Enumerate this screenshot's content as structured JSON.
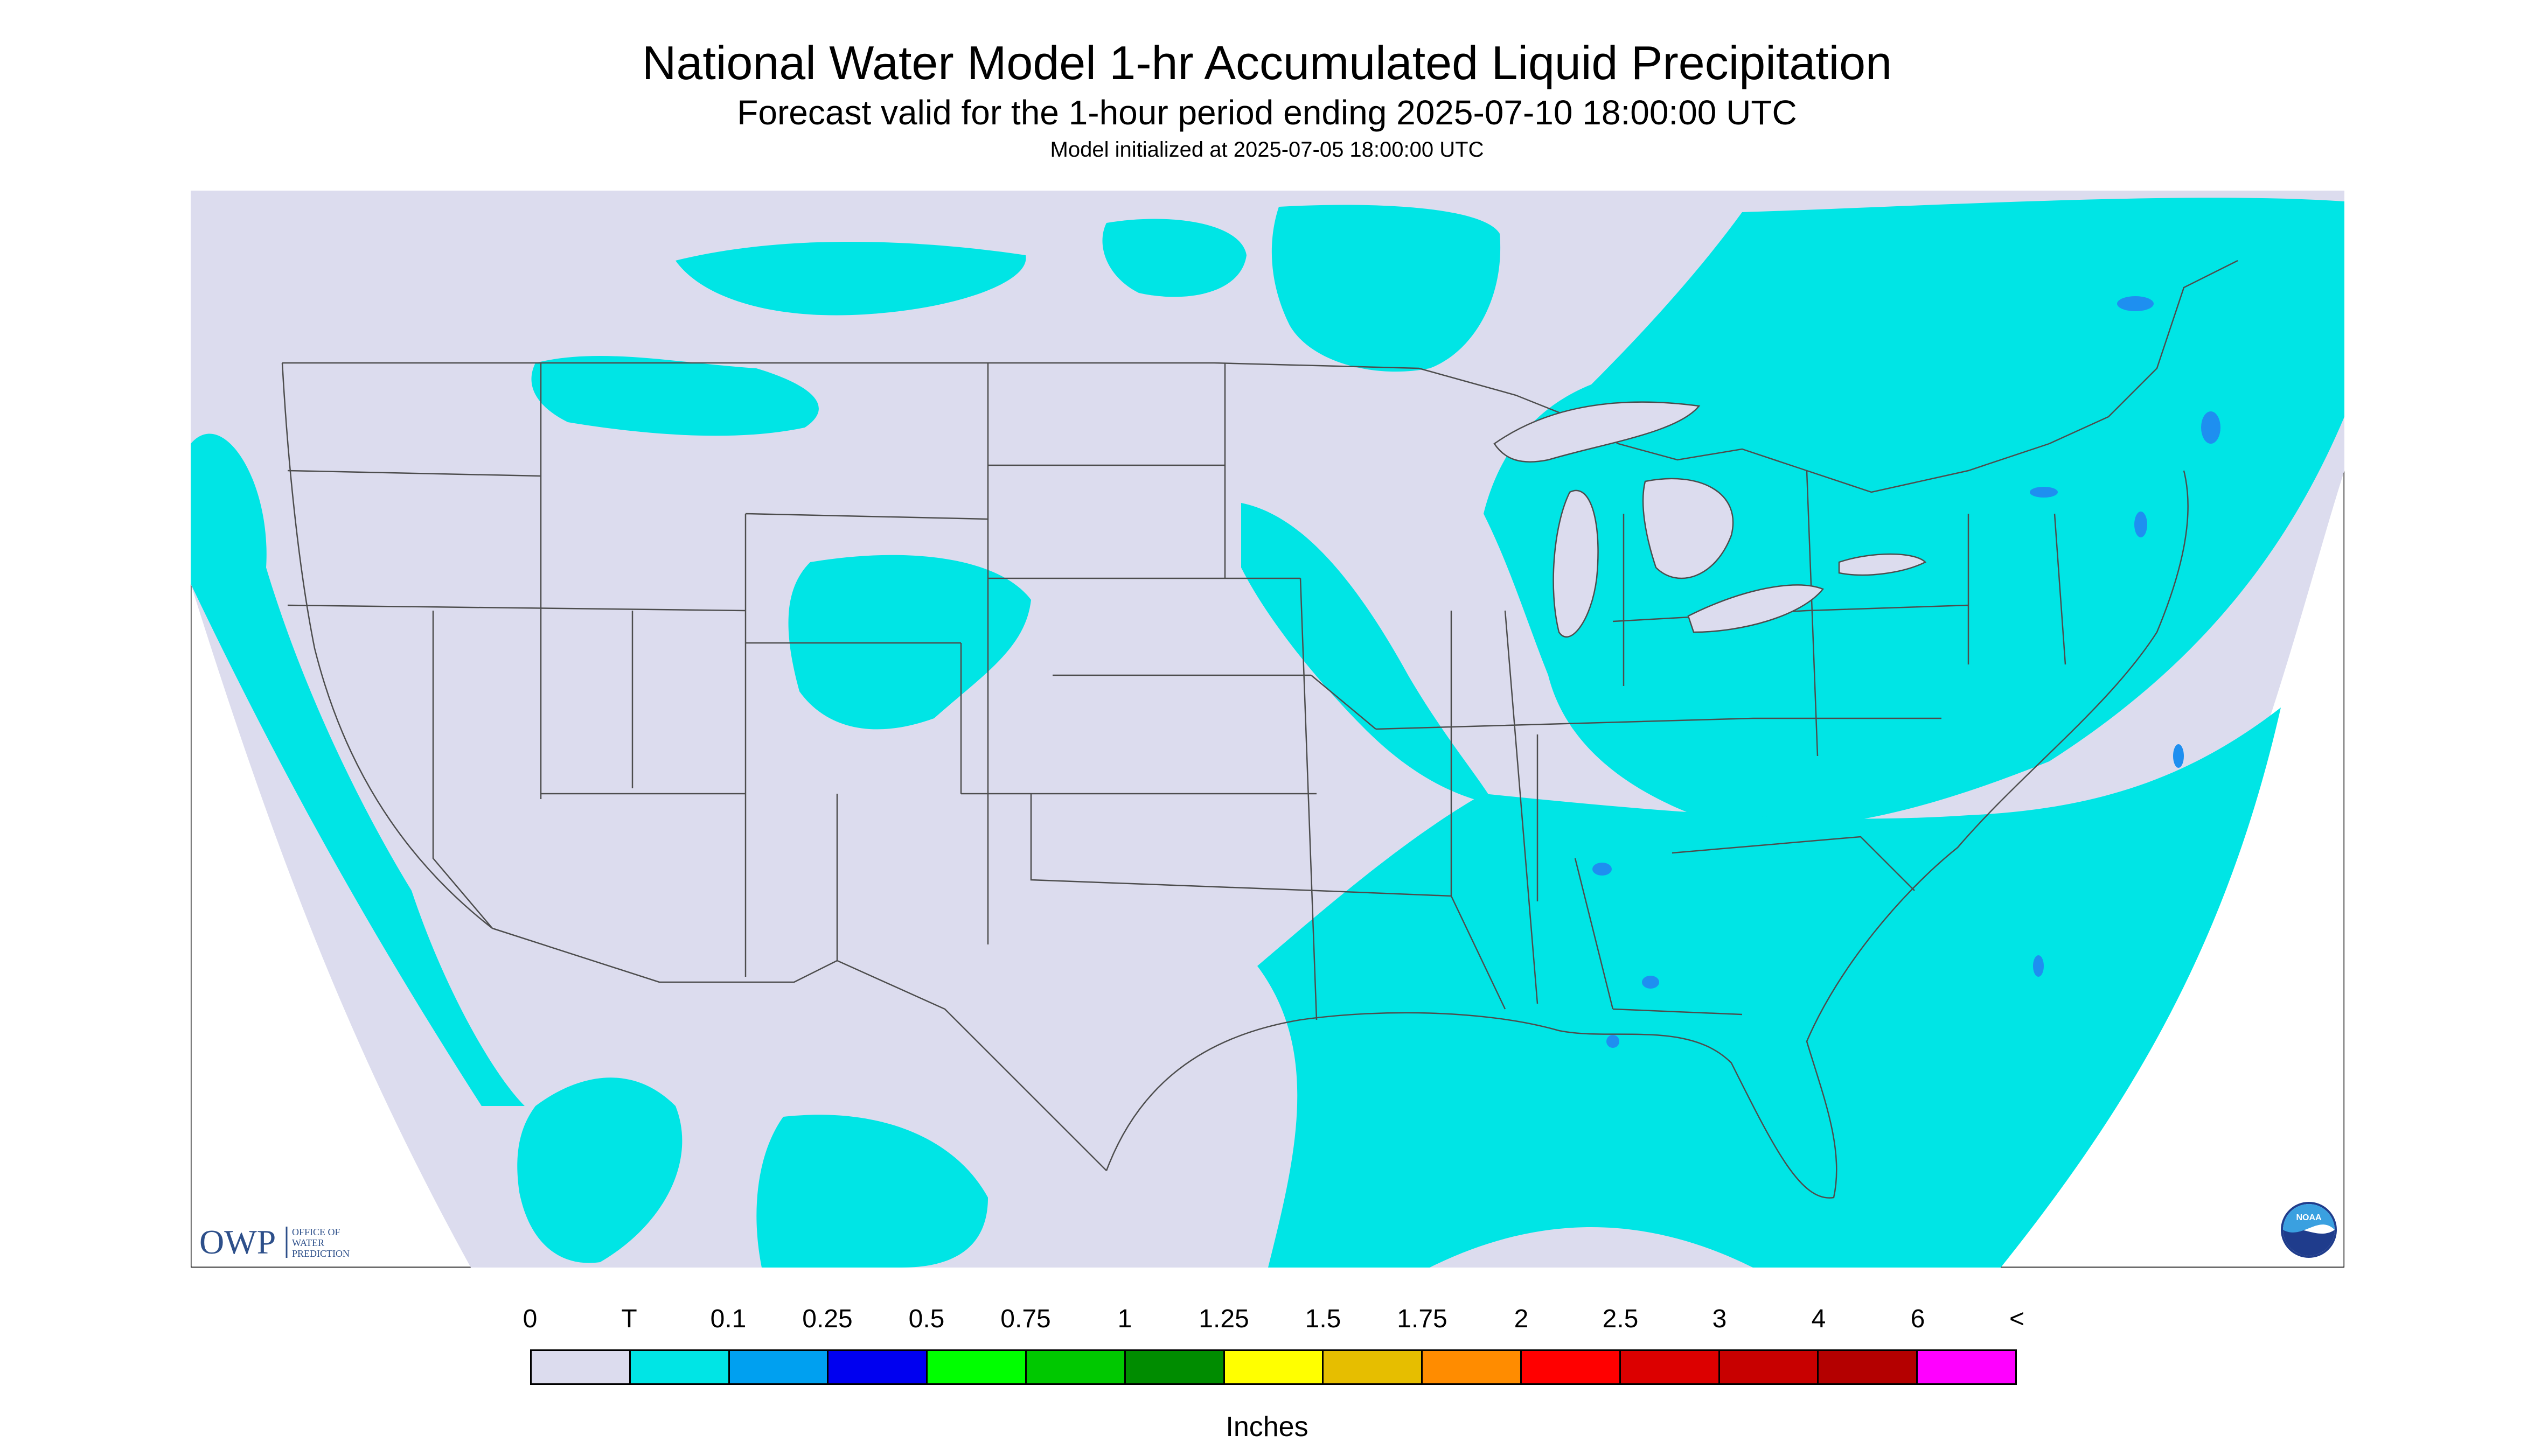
{
  "title": "National Water Model 1-hr Accumulated Liquid Precipitation",
  "subtitle": "Forecast valid for the 1-hour period ending 2025-07-10 18:00:00 UTC",
  "init_line": "Model initialized at 2025-07-05 18:00:00 UTC",
  "logo": {
    "acronym": "OWP",
    "name_lines": [
      "OFFICE OF",
      "WATER",
      "PREDICTION"
    ]
  },
  "badge": "NOAA",
  "legend": {
    "labels": [
      "0",
      "T",
      "0.1",
      "0.25",
      "0.5",
      "0.75",
      "1",
      "1.25",
      "1.5",
      "1.75",
      "2",
      "2.5",
      "3",
      "4",
      "6",
      "<"
    ],
    "colors": [
      "#dcdcee",
      "#00e5e5",
      "#00a0f0",
      "#0000f0",
      "#00ff00",
      "#00c800",
      "#008c00",
      "#ffff00",
      "#e6be00",
      "#ff8c00",
      "#ff0000",
      "#dc0000",
      "#c80000",
      "#b40000",
      "#ff00ff",
      "#9650c8"
    ],
    "units": "Inches"
  },
  "map_colors": {
    "background": "#dcdcee",
    "trace": "#00e5e5",
    "light": "#1e8ff0",
    "border": "#4d4d4d"
  }
}
